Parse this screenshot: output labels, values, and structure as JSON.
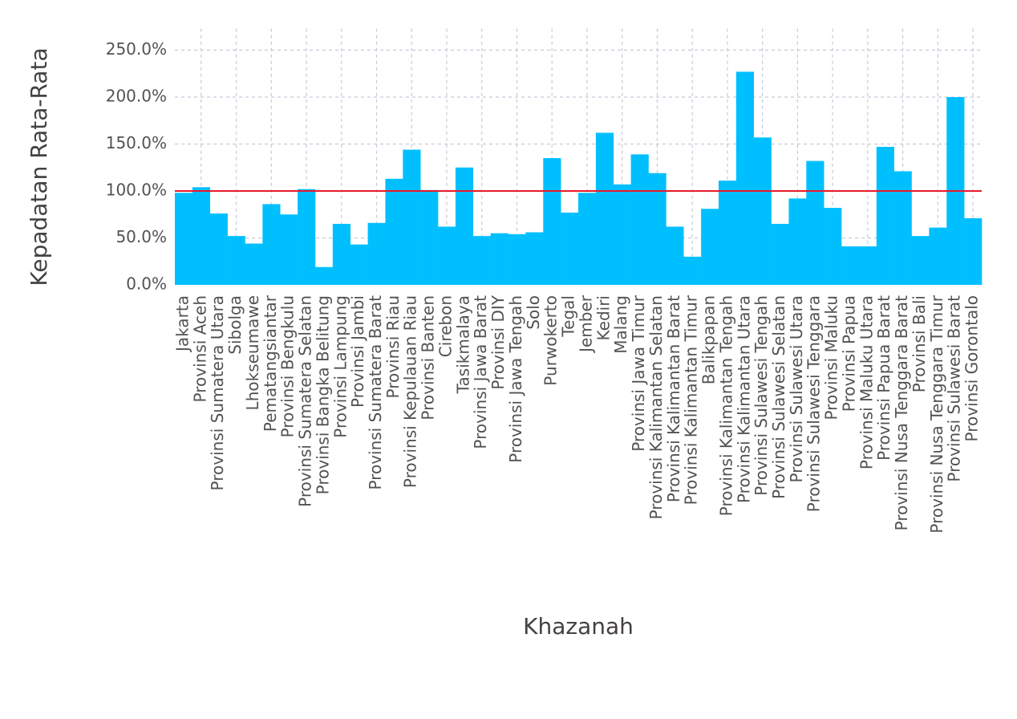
{
  "chart_data": {
    "type": "bar",
    "title": "",
    "xlabel": "Khazanah",
    "ylabel": "Kepadatan Rata-Rata",
    "ylim": [
      0,
      260
    ],
    "yticks": [
      0,
      50,
      100,
      150,
      200,
      250
    ],
    "ytick_labels": [
      "0.0%",
      "50.0%",
      "100.0%",
      "150.0%",
      "200.0%",
      "250.0%"
    ],
    "grid": true,
    "bar_color": "#00bfff",
    "reference_line": {
      "value": 100,
      "color": "#e8192c"
    },
    "categories": [
      "Jakarta",
      "Provinsi Aceh",
      "Provinsi Sumatera Utara",
      "Sibolga",
      "Lhokseumawe",
      "Pematangsiantar",
      "Provinsi Bengkulu",
      "Provinsi Sumatera Selatan",
      "Provinsi Bangka Belitung",
      "Provinsi Lampung",
      "Provinsi Jambi",
      "Provinsi Sumatera Barat",
      "Provinsi Riau",
      "Provinsi Kepulauan Riau",
      "Provinsi Banten",
      "Cirebon",
      "Tasikmalaya",
      "Provinsi Jawa Barat",
      "Provinsi DIY",
      "Provinsi Jawa Tengah",
      "Solo",
      "Purwokerto",
      "Tegal",
      "Jember",
      "Kediri",
      "Malang",
      "Provinsi Jawa Timur",
      "Provinsi Kalimantan Selatan",
      "Provinsi Kalimantan Barat",
      "Provinsi Kalimantan Timur",
      "Balikpapan",
      "Provinsi Kalimantan Tengah",
      "Provinsi Kalimantan Utara",
      "Provinsi Sulawesi Tengah",
      "Provinsi Sulawesi Selatan",
      "Provinsi Sulawesi Utara",
      "Provinsi Sulawesi Tenggara",
      "Provinsi Maluku",
      "Provinsi Papua",
      "Provinsi Maluku Utara",
      "Provinsi Papua Barat",
      "Provinsi Nusa Tenggara Barat",
      "Provinsi Bali",
      "Provinsi Nusa Tenggara Timur",
      "Provinsi Sulawesi Barat",
      "Provinsi Gorontalo"
    ],
    "values": [
      98,
      104,
      76,
      52,
      44,
      86,
      75,
      102,
      19,
      65,
      43,
      66,
      113,
      144,
      101,
      62,
      125,
      52,
      55,
      54,
      56,
      135,
      77,
      98,
      162,
      107,
      139,
      119,
      62,
      30,
      81,
      111,
      227,
      157,
      65,
      92,
      132,
      82,
      41,
      41,
      147,
      121,
      52,
      61,
      200,
      71
    ]
  }
}
